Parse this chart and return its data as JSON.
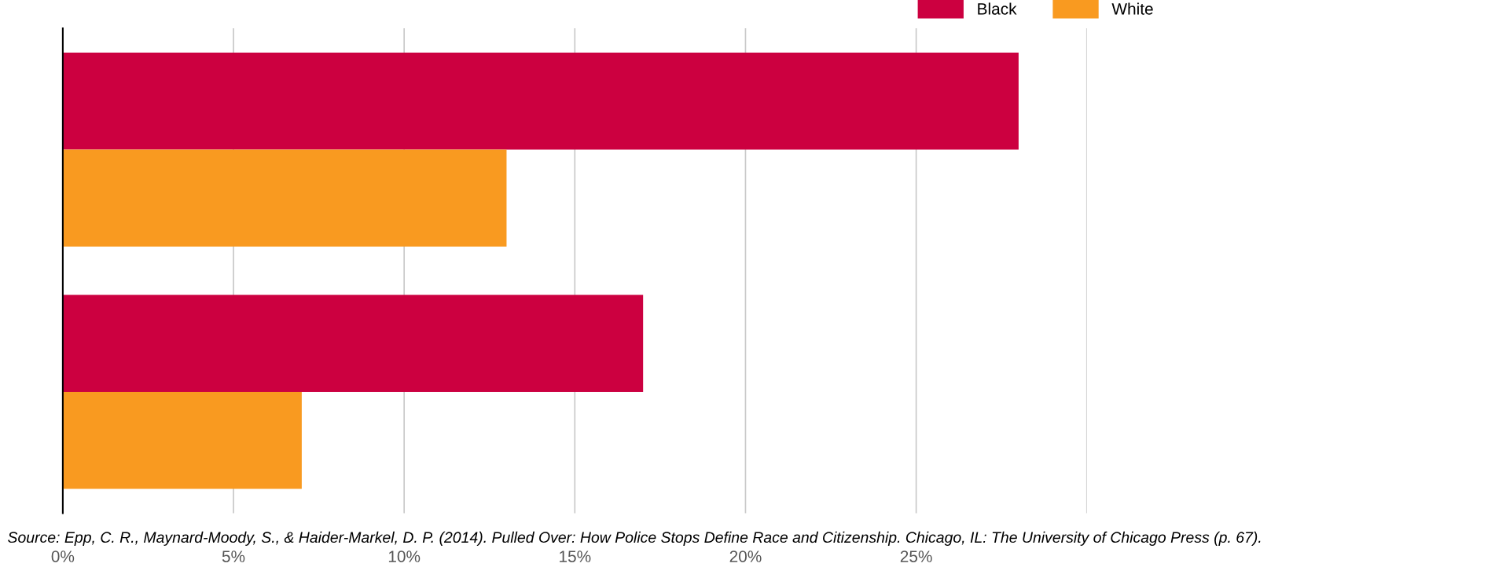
{
  "chart_data": {
    "type": "bar",
    "orientation": "horizontal",
    "categories": [
      null,
      null
    ],
    "series": [
      {
        "name": "Black",
        "color": "#cc0040",
        "values": [
          28,
          17
        ]
      },
      {
        "name": "White",
        "color": "#f99a20",
        "values": [
          13,
          7
        ]
      }
    ],
    "xlim": [
      0,
      30
    ],
    "xticks": [
      {
        "value": 0,
        "label": "0%"
      },
      {
        "value": 5,
        "label": "5%"
      },
      {
        "value": 10,
        "label": "10%"
      },
      {
        "value": 15,
        "label": "15%"
      },
      {
        "value": 20,
        "label": "20%"
      },
      {
        "value": 25,
        "label": "25%"
      },
      {
        "value": 30,
        "label": null
      }
    ],
    "grid": "x",
    "legend": "top",
    "annotations": [
      "Source: Epp, C. R., Maynard-Moody, S., & Haider-Markel, D. P. (2014). Pulled Over: How Police Stops Define Race and Citizenship. Chicago, IL: The University of Chicago Press (p. 67)."
    ]
  }
}
